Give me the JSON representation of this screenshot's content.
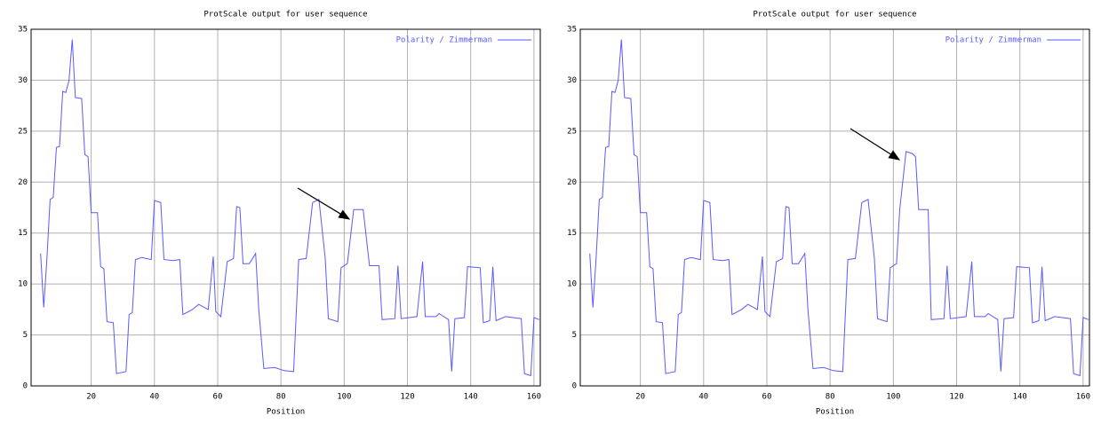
{
  "chart_data": [
    {
      "type": "line",
      "title": "ProtScale output for user sequence",
      "x_label": "Position",
      "xlim": [
        1,
        162
      ],
      "ylim": [
        0,
        35
      ],
      "xticks": [
        20,
        40,
        60,
        80,
        100,
        120,
        140,
        160
      ],
      "yticks": [
        0,
        5,
        10,
        15,
        20,
        25,
        30,
        35
      ],
      "grid": true,
      "legend": "upper right",
      "x": [
        4,
        5,
        6,
        7,
        8,
        9,
        10,
        11,
        12,
        13,
        14,
        15,
        17,
        18,
        19,
        20,
        22,
        23,
        24,
        25,
        27,
        28,
        31,
        32,
        33,
        34,
        36,
        39,
        40,
        42,
        43,
        46,
        48,
        49,
        52,
        54,
        57,
        58.6,
        59.4,
        61,
        63,
        65,
        66,
        67,
        68,
        70,
        72,
        73,
        74.6,
        78,
        81,
        84,
        85.6,
        88,
        90,
        92,
        94,
        95,
        98,
        99,
        101,
        103,
        106,
        108,
        111,
        112,
        116,
        117,
        118,
        123,
        124.8,
        125.6,
        129,
        130,
        133,
        134,
        135,
        138,
        139,
        143,
        144,
        146,
        147,
        148,
        151,
        156,
        157,
        159,
        160,
        161.7
      ],
      "series": [
        {
          "name": "Polarity / Zimmerman",
          "color": "#5a5aff",
          "values": [
            13,
            7.7,
            12.5,
            18.3,
            18.5,
            23.4,
            23.5,
            28.9,
            28.8,
            30,
            34,
            28.3,
            28.2,
            22.7,
            22.5,
            17,
            17,
            11.7,
            11.5,
            6.3,
            6.2,
            1.2,
            1.4,
            7,
            7.2,
            12.4,
            12.6,
            12.4,
            18.2,
            18,
            12.4,
            12.3,
            12.4,
            7,
            7.5,
            8,
            7.5,
            12.7,
            7.3,
            6.8,
            12.2,
            12.5,
            17.6,
            17.5,
            12,
            12,
            13,
            7.5,
            1.7,
            1.8,
            1.5,
            1.4,
            12.4,
            12.5,
            18,
            18.3,
            12.5,
            6.6,
            6.3,
            11.6,
            12,
            17.3,
            17.3,
            11.8,
            11.8,
            6.5,
            6.6,
            11.8,
            6.6,
            6.8,
            12.2,
            6.8,
            6.8,
            7.1,
            6.5,
            1.4,
            6.6,
            6.7,
            11.7,
            11.6,
            6.2,
            6.4,
            11.7,
            6.4,
            6.8,
            6.6,
            1.2,
            1,
            6.7,
            6.5
          ]
        }
      ]
    },
    {
      "type": "line",
      "title": "ProtScale output for user sequence",
      "x_label": "Position",
      "xlim": [
        1,
        162
      ],
      "ylim": [
        0,
        35
      ],
      "xticks": [
        20,
        40,
        60,
        80,
        100,
        120,
        140,
        160
      ],
      "yticks": [
        0,
        5,
        10,
        15,
        20,
        25,
        30,
        35
      ],
      "grid": true,
      "legend": "upper right",
      "x": [
        4,
        5,
        6,
        7,
        8,
        9,
        10,
        11,
        12,
        13,
        14,
        15,
        17,
        18,
        19,
        20,
        22,
        23,
        24,
        25,
        27,
        28,
        31,
        32,
        33,
        34,
        36,
        39,
        40,
        42,
        43,
        46,
        48,
        49,
        52,
        54,
        57,
        58.6,
        59.4,
        61,
        63,
        65,
        66,
        67,
        68,
        70,
        72,
        73,
        74.6,
        78,
        81,
        84,
        85.6,
        88,
        90,
        92,
        94,
        95,
        98,
        99,
        101,
        102,
        104,
        106,
        107,
        108,
        111,
        112,
        116,
        117,
        118,
        123,
        124.8,
        125.6,
        129,
        130,
        133,
        134,
        135,
        138,
        139,
        143,
        144,
        146,
        147,
        148,
        151,
        156,
        157,
        159,
        160,
        161.7
      ],
      "series": [
        {
          "name": "Polarity / Zimmerman",
          "color": "#5a5aff",
          "values": [
            13,
            7.7,
            12.5,
            18.3,
            18.5,
            23.4,
            23.5,
            28.9,
            28.8,
            30,
            34,
            28.3,
            28.2,
            22.7,
            22.5,
            17,
            17,
            11.7,
            11.5,
            6.3,
            6.2,
            1.2,
            1.4,
            7,
            7.2,
            12.4,
            12.6,
            12.4,
            18.2,
            18,
            12.4,
            12.3,
            12.4,
            7,
            7.5,
            8,
            7.5,
            12.7,
            7.3,
            6.8,
            12.2,
            12.5,
            17.6,
            17.5,
            12,
            12,
            13,
            7.5,
            1.7,
            1.8,
            1.5,
            1.4,
            12.4,
            12.5,
            18,
            18.3,
            12.5,
            6.6,
            6.3,
            11.6,
            12,
            17.3,
            23,
            22.8,
            22.5,
            17.3,
            17.3,
            6.5,
            6.6,
            11.8,
            6.6,
            6.8,
            12.2,
            6.8,
            6.8,
            7.1,
            6.5,
            1.4,
            6.6,
            6.7,
            11.7,
            11.6,
            6.2,
            6.4,
            11.7,
            6.4,
            6.8,
            6.6,
            1.2,
            1,
            6.7,
            6.5
          ]
        }
      ]
    }
  ]
}
